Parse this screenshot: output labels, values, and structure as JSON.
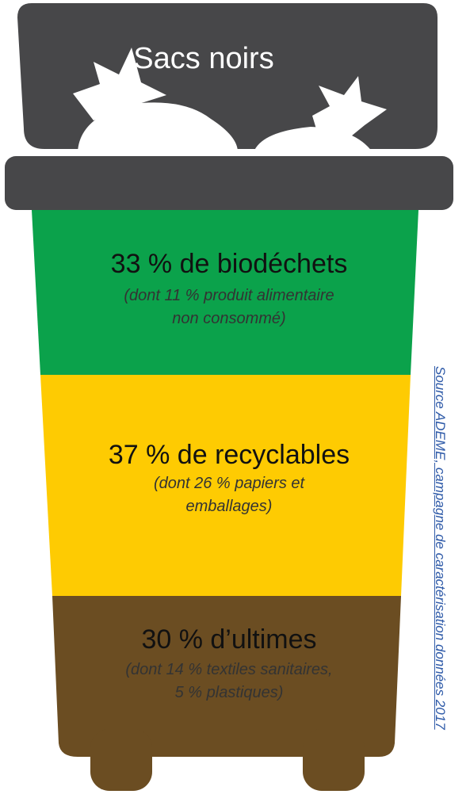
{
  "colors": {
    "lid": "#474749",
    "bag": "#ffffff",
    "biodechets": "#0ba24b",
    "recyclables": "#fecb02",
    "ultimes": "#6b4d22",
    "source_text": "#2e5aa8"
  },
  "bin": {
    "title": "Sacs noirs"
  },
  "segments": [
    {
      "name": "biodechets",
      "title": "33 % de biodéchets",
      "subtitle_line1": "(dont 11 % produit alimentaire",
      "subtitle_line2": "non consommé)"
    },
    {
      "name": "recyclables",
      "title": "37 % de recyclables",
      "subtitle_line1": "(dont 26 % papiers et",
      "subtitle_line2": "emballages)"
    },
    {
      "name": "ultimes",
      "title": "30 % d’ultimes",
      "subtitle_line1": "(dont 14 % textiles sanitaires,",
      "subtitle_line2": "5 % plastiques)"
    }
  ],
  "source": "Source ADEME, campagne de caractérisation données 2017"
}
